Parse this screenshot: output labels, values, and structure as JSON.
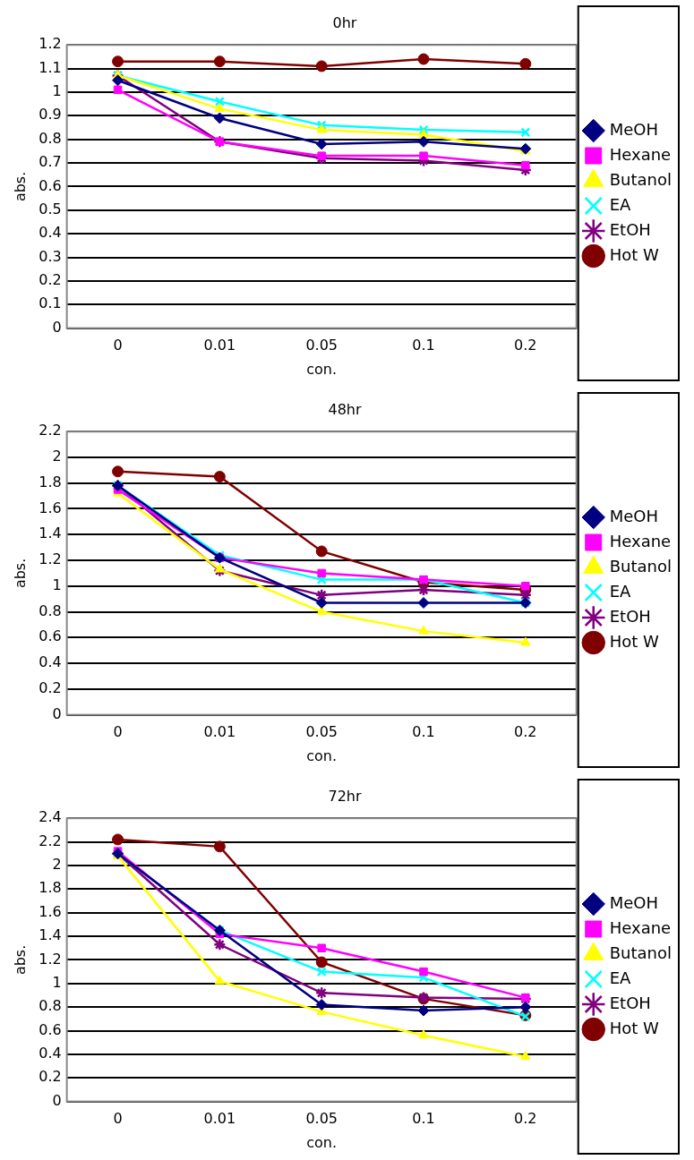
{
  "chart_data": [
    {
      "type": "line",
      "title": "0hr",
      "x_label": "con.",
      "y_label": "abs.",
      "categories": [
        "0",
        "0.01",
        "0.05",
        "0.1",
        "0.2"
      ],
      "series": [
        {
          "name": "MeOH",
          "color": "#000080",
          "marker": "diamond",
          "values": [
            1.05,
            0.89,
            0.78,
            0.79,
            0.76
          ]
        },
        {
          "name": "Hexane",
          "color": "#ff00ff",
          "marker": "square",
          "values": [
            1.01,
            0.79,
            0.73,
            0.73,
            0.69
          ]
        },
        {
          "name": "Butanol",
          "color": "#ffff00",
          "marker": "triangle",
          "values": [
            1.07,
            0.93,
            0.84,
            0.82,
            0.75
          ]
        },
        {
          "name": "EA",
          "color": "#00ffff",
          "marker": "x",
          "values": [
            1.07,
            0.96,
            0.86,
            0.84,
            0.83
          ]
        },
        {
          "name": "EtOH",
          "color": "#800080",
          "marker": "star",
          "values": [
            1.07,
            0.79,
            0.72,
            0.71,
            0.67
          ]
        },
        {
          "name": "Hot W",
          "color": "#800000",
          "marker": "circle",
          "values": [
            1.13,
            1.13,
            1.11,
            1.14,
            1.12
          ]
        }
      ],
      "ylim": [
        0,
        1.2
      ],
      "yticks": [
        0,
        0.1,
        0.2,
        0.3,
        0.4,
        0.5,
        0.6,
        0.7,
        0.8,
        0.9,
        1,
        1.1,
        1.2
      ],
      "grid": true,
      "legend": "right"
    },
    {
      "type": "line",
      "title": "48hr",
      "x_label": "con.",
      "y_label": "abs.",
      "categories": [
        "0",
        "0.01",
        "0.05",
        "0.1",
        "0.2"
      ],
      "series": [
        {
          "name": "MeOH",
          "color": "#000080",
          "marker": "diamond",
          "values": [
            1.78,
            1.22,
            0.87,
            0.87,
            0.87
          ]
        },
        {
          "name": "Hexane",
          "color": "#ff00ff",
          "marker": "square",
          "values": [
            1.75,
            1.22,
            1.1,
            1.05,
            1.0
          ]
        },
        {
          "name": "Butanol",
          "color": "#ffff00",
          "marker": "triangle",
          "values": [
            1.72,
            1.13,
            0.8,
            0.65,
            0.56
          ]
        },
        {
          "name": "EA",
          "color": "#00ffff",
          "marker": "x",
          "values": [
            1.78,
            1.24,
            1.05,
            1.05,
            0.87
          ]
        },
        {
          "name": "EtOH",
          "color": "#800080",
          "marker": "star",
          "values": [
            1.78,
            1.12,
            0.93,
            0.97,
            0.93
          ]
        },
        {
          "name": "Hot W",
          "color": "#800000",
          "marker": "circle",
          "values": [
            1.89,
            1.85,
            1.27,
            1.03,
            0.97
          ]
        }
      ],
      "ylim": [
        0,
        2.2
      ],
      "yticks": [
        0,
        0.2,
        0.4,
        0.6,
        0.8,
        1,
        1.2,
        1.4,
        1.6,
        1.8,
        2,
        2.2
      ],
      "grid": true,
      "legend": "right"
    },
    {
      "type": "line",
      "title": "72hr",
      "x_label": "con.",
      "y_label": "abs.",
      "categories": [
        "0",
        "0.01",
        "0.05",
        "0.1",
        "0.2"
      ],
      "series": [
        {
          "name": "MeOH",
          "color": "#000080",
          "marker": "diamond",
          "values": [
            2.1,
            1.45,
            0.82,
            0.77,
            0.8
          ]
        },
        {
          "name": "Hexane",
          "color": "#ff00ff",
          "marker": "square",
          "values": [
            2.12,
            1.42,
            1.3,
            1.1,
            0.88
          ]
        },
        {
          "name": "Butanol",
          "color": "#ffff00",
          "marker": "triangle",
          "values": [
            2.08,
            1.02,
            0.76,
            0.56,
            0.38
          ]
        },
        {
          "name": "EA",
          "color": "#00ffff",
          "marker": "x",
          "values": [
            2.1,
            1.45,
            1.1,
            1.05,
            0.72
          ]
        },
        {
          "name": "EtOH",
          "color": "#800080",
          "marker": "star",
          "values": [
            2.1,
            1.33,
            0.92,
            0.88,
            0.87
          ]
        },
        {
          "name": "Hot W",
          "color": "#800000",
          "marker": "circle",
          "values": [
            2.22,
            2.16,
            1.18,
            0.87,
            0.73
          ]
        }
      ],
      "ylim": [
        0,
        2.4
      ],
      "yticks": [
        0,
        0.2,
        0.4,
        0.6,
        0.8,
        1,
        1.2,
        1.4,
        1.6,
        1.8,
        2,
        2.2,
        2.4
      ],
      "grid": true,
      "legend": "right"
    }
  ]
}
